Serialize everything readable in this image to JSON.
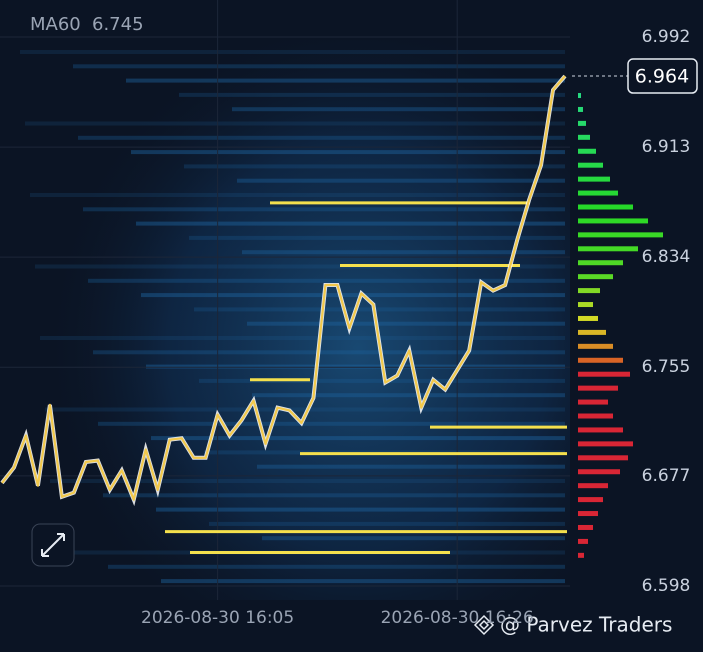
{
  "chart_data": {
    "type": "line",
    "indicator": {
      "label": "MA60",
      "value": 6.745
    },
    "categories": [
      null,
      null,
      null,
      null,
      null,
      null,
      null,
      null,
      null,
      null,
      null,
      null,
      null,
      null,
      null,
      null,
      null,
      null,
      "2026-08-30 16:05",
      null,
      null,
      null,
      null,
      null,
      null,
      null,
      null,
      null,
      null,
      null,
      null,
      null,
      null,
      null,
      null,
      null,
      null,
      null,
      "2026-08-30 16:26",
      null,
      null,
      null,
      null,
      null,
      null,
      null,
      null,
      null
    ],
    "values": [
      6.672,
      6.683,
      6.706,
      6.67,
      6.728,
      6.662,
      6.665,
      6.687,
      6.688,
      6.667,
      6.681,
      6.66,
      6.696,
      6.667,
      6.703,
      6.704,
      6.69,
      6.69,
      6.721,
      6.706,
      6.717,
      6.731,
      6.7,
      6.726,
      6.724,
      6.715,
      6.733,
      6.814,
      6.814,
      6.783,
      6.808,
      6.8,
      6.744,
      6.749,
      6.767,
      6.726,
      6.746,
      6.739,
      6.753,
      6.767,
      6.816,
      6.81,
      6.814,
      6.846,
      6.875,
      6.9,
      6.954,
      6.964
    ],
    "color": "#f2c94c",
    "last_price": 6.964,
    "ylim": [
      6.575,
      7.018
    ],
    "yticks": [
      6.598,
      6.677,
      6.755,
      6.834,
      6.913,
      6.992
    ],
    "grid": true,
    "levels": [
      6.873,
      6.828,
      6.746,
      6.712,
      6.693,
      6.637,
      6.622
    ],
    "volume_profile": {
      "prices": [
        6.95,
        6.94,
        6.93,
        6.92,
        6.91,
        6.9,
        6.89,
        6.88,
        6.87,
        6.86,
        6.85,
        6.84,
        6.83,
        6.82,
        6.81,
        6.8,
        6.79,
        6.78,
        6.77,
        6.76,
        6.75,
        6.74,
        6.73,
        6.72,
        6.71,
        6.7,
        6.69,
        6.68,
        6.67,
        6.66,
        6.65,
        6.64,
        6.63,
        6.62
      ],
      "values": [
        3,
        5,
        8,
        12,
        18,
        25,
        32,
        40,
        55,
        70,
        85,
        60,
        45,
        35,
        22,
        15,
        20,
        28,
        35,
        45,
        52,
        40,
        30,
        35,
        45,
        55,
        50,
        42,
        30,
        25,
        20,
        15,
        10,
        6
      ]
    },
    "watermark": "@ Parvez Traders"
  }
}
